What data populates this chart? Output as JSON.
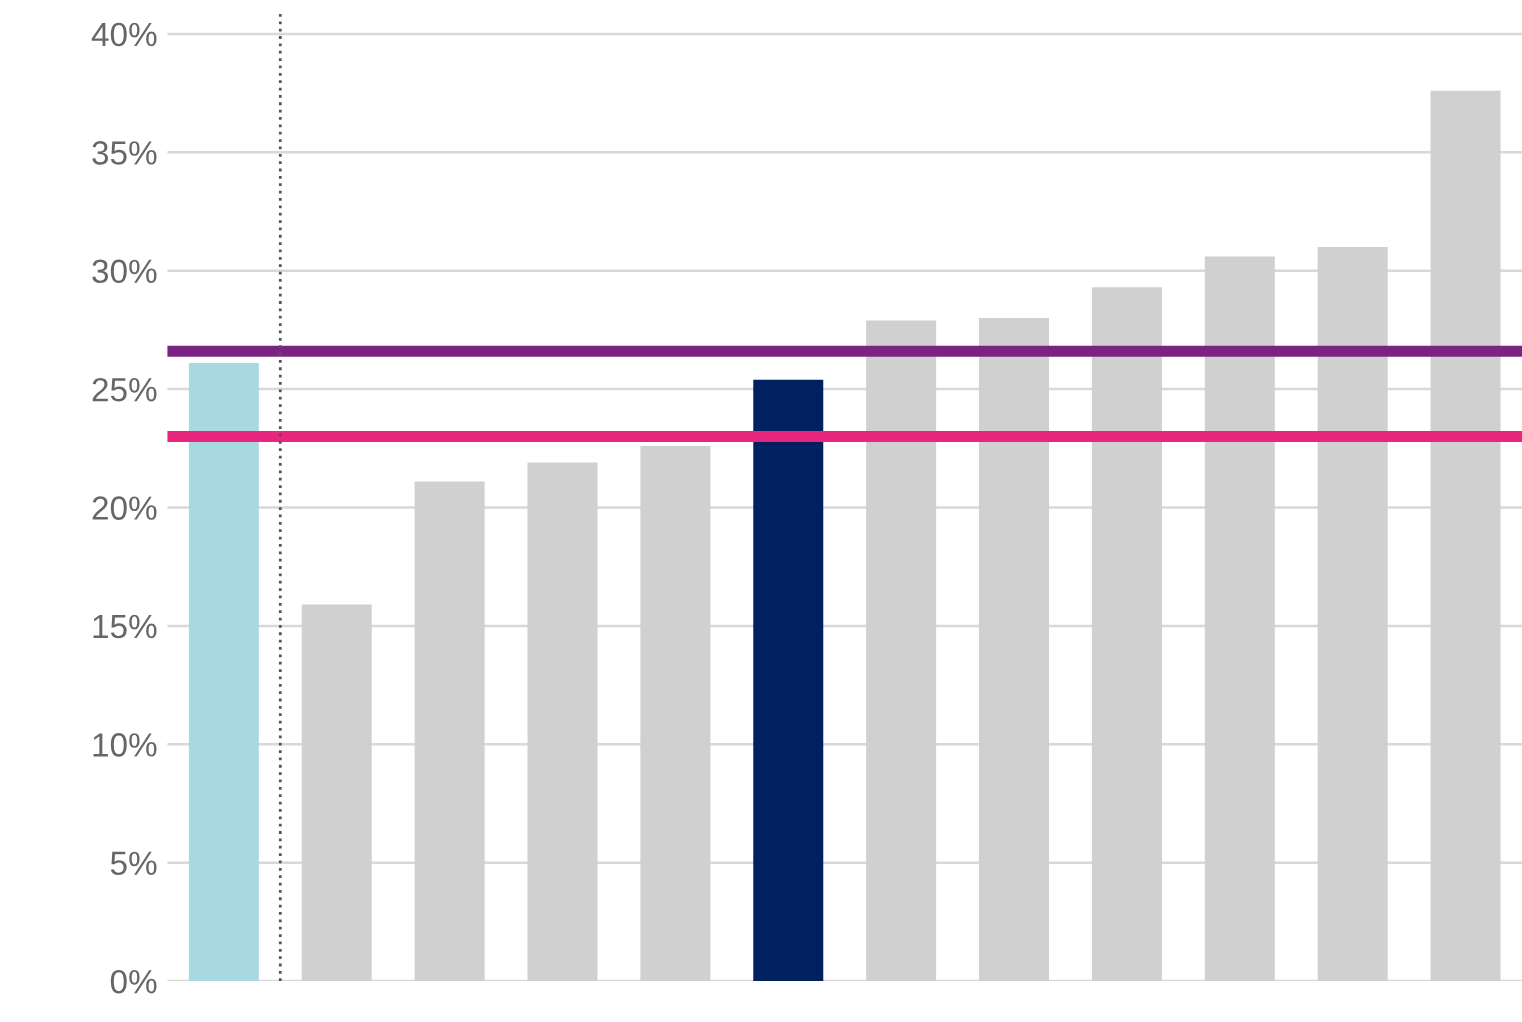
{
  "chart_data": {
    "type": "bar",
    "categories": [
      null,
      null,
      null,
      null,
      null,
      null,
      null,
      null,
      null,
      null,
      null,
      null
    ],
    "values": [
      26.1,
      15.9,
      21.1,
      21.9,
      22.6,
      25.4,
      27.9,
      28.0,
      29.3,
      30.6,
      31.0,
      37.6
    ],
    "colors": [
      "#a8d8e2",
      "#d0d0d0",
      "#d0d0d0",
      "#d0d0d0",
      "#d0d0d0",
      "#002060",
      "#d0d0d0",
      "#d0d0d0",
      "#d0d0d0",
      "#d0d0d0",
      "#d0d0d0",
      "#d0d0d0"
    ],
    "ylim": [
      0,
      41
    ],
    "yticks": [
      {
        "value": 0,
        "label": "0%"
      },
      {
        "value": 5,
        "label": "5%"
      },
      {
        "value": 10,
        "label": "10%"
      },
      {
        "value": 15,
        "label": "15%"
      },
      {
        "value": 20,
        "label": "20%"
      },
      {
        "value": 25,
        "label": "25%"
      },
      {
        "value": 30,
        "label": "30%"
      },
      {
        "value": 35,
        "label": "35%"
      },
      {
        "value": 40,
        "label": "40%"
      }
    ],
    "grid": "y",
    "tick_labels": "y",
    "ref_lines": [
      {
        "axis": "y",
        "value": 26.6,
        "color": "#7b2382",
        "line_style": "solid"
      },
      {
        "axis": "y",
        "value": 23.0,
        "color": "#e8267e",
        "line_style": "solid"
      }
    ]
  }
}
